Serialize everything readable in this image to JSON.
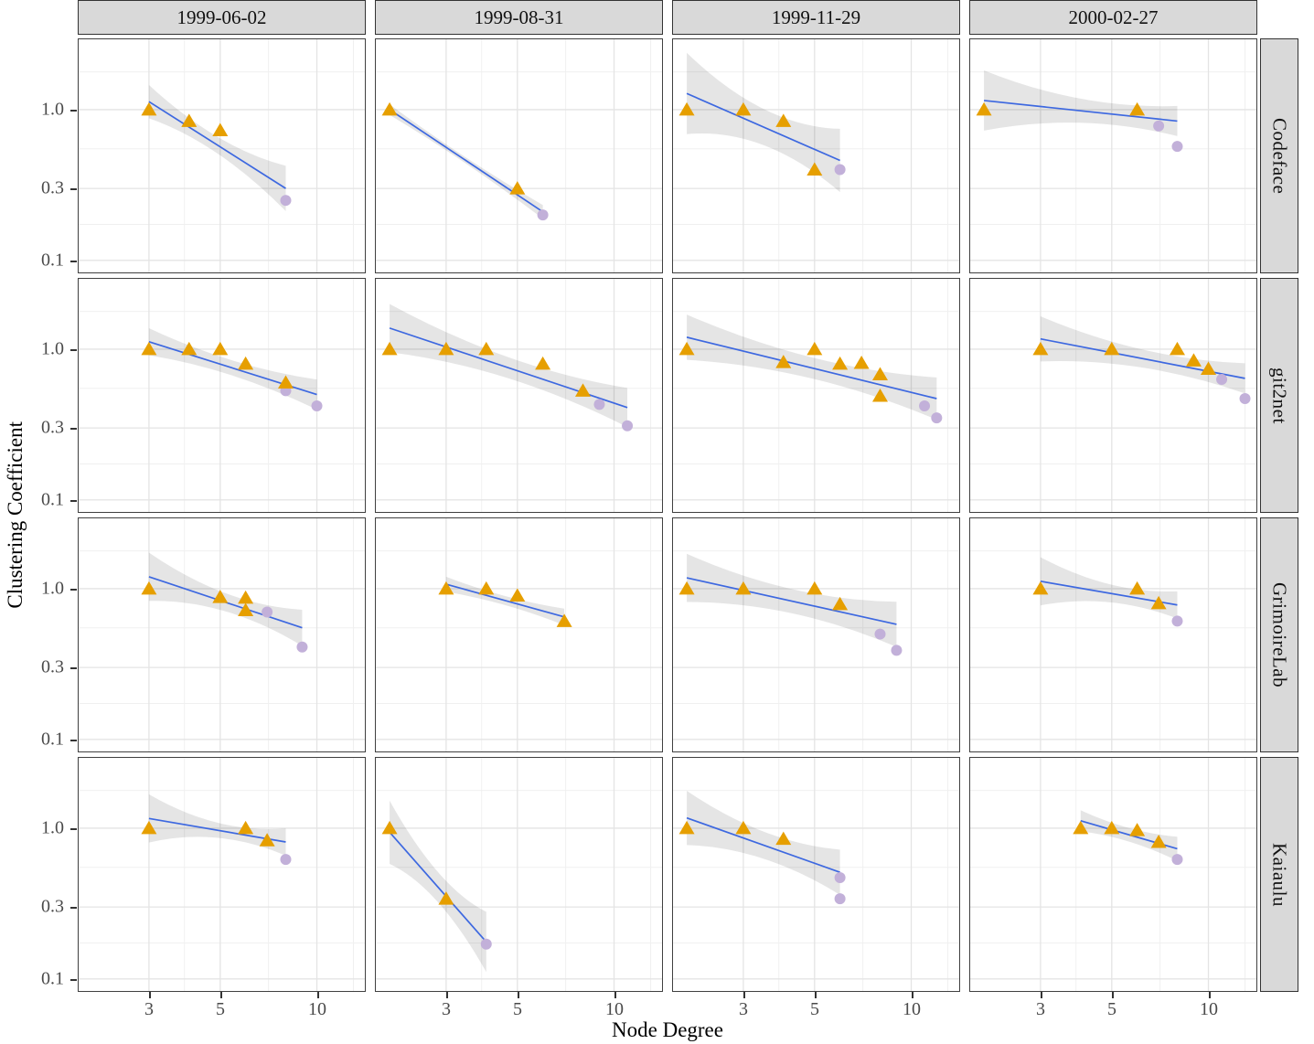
{
  "figure": {
    "x_axis_title": "Node Degree",
    "y_axis_title": "Clustering Coefficient"
  },
  "chart_data": {
    "type": "scatter",
    "scales": "log-log",
    "title": "",
    "xlabel": "Node Degree",
    "ylabel": "Clustering Coefficient",
    "facet_columns": [
      "1999-06-02",
      "1999-08-31",
      "1999-11-29",
      "2000-02-27"
    ],
    "facet_rows": [
      "Codeface",
      "git2net",
      "GrimoireLab",
      "Kaiaulu"
    ],
    "x_ticks": [
      3,
      5,
      10
    ],
    "x_tick_labels": [
      "3",
      "5",
      "10"
    ],
    "y_ticks": [
      1.0,
      0.3,
      0.1
    ],
    "y_tick_labels": [
      "1.0",
      "0.3",
      "0.1"
    ],
    "x_minor_gridlines": [
      3.87,
      7.07,
      13.0
    ],
    "y_minor_gridlines": [
      1.78,
      0.55,
      0.173
    ],
    "xlim": [
      1.8,
      14.2
    ],
    "ylim": [
      0.082,
      2.97
    ],
    "grid": true,
    "legend": "none",
    "colors": {
      "triangle": "#E69F00",
      "circle": "#C2B0D9",
      "trend_line": "#3D68E0",
      "band": "rgba(0,0,0,0.10)",
      "grid_major": "#E4E4E4",
      "grid_minor": "#F0F0F0",
      "strip_bg": "#D9D9D9"
    },
    "panels": [
      {
        "row": "Codeface",
        "col": "1999-06-02",
        "triangles": [
          [
            3,
            1.0
          ],
          [
            4,
            0.84
          ],
          [
            5,
            0.73
          ]
        ],
        "circles": [
          [
            8,
            0.25
          ]
        ],
        "trend": {
          "x": [
            3,
            8
          ],
          "y": [
            1.13,
            0.3
          ]
        },
        "band": [
          0.11,
          0.055,
          0.15
        ]
      },
      {
        "row": "Codeface",
        "col": "1999-08-31",
        "triangles": [
          [
            2,
            1.0
          ],
          [
            5,
            0.3
          ]
        ],
        "circles": [
          [
            6,
            0.2
          ]
        ],
        "trend": {
          "x": [
            2,
            6
          ],
          "y": [
            1.0,
            0.21
          ]
        },
        "band": [
          0.035,
          0.02,
          0.045
        ]
      },
      {
        "row": "Codeface",
        "col": "1999-11-29",
        "triangles": [
          [
            2,
            1.0
          ],
          [
            3,
            1.0
          ],
          [
            4,
            0.84
          ],
          [
            5,
            0.4
          ]
        ],
        "circles": [
          [
            6,
            0.4
          ]
        ],
        "trend": {
          "x": [
            2,
            6
          ],
          "y": [
            1.28,
            0.46
          ]
        },
        "band": [
          0.27,
          0.12,
          0.21
        ]
      },
      {
        "row": "Codeface",
        "col": "2000-02-27",
        "triangles": [
          [
            2,
            1.0
          ],
          [
            6,
            1.0
          ]
        ],
        "circles": [
          [
            7,
            0.78
          ],
          [
            8,
            0.57
          ]
        ],
        "trend": {
          "x": [
            2,
            8
          ],
          "y": [
            1.15,
            0.84
          ]
        },
        "band": [
          0.2,
          0.08,
          0.1
        ]
      },
      {
        "row": "git2net",
        "col": "1999-06-02",
        "triangles": [
          [
            3,
            1.0
          ],
          [
            4,
            1.0
          ],
          [
            5,
            1.0
          ],
          [
            6,
            0.8
          ],
          [
            8,
            0.6
          ]
        ],
        "circles": [
          [
            8,
            0.53
          ],
          [
            10,
            0.42
          ]
        ],
        "trend": {
          "x": [
            3,
            10
          ],
          "y": [
            1.12,
            0.5
          ]
        },
        "band": [
          0.09,
          0.05,
          0.1
        ]
      },
      {
        "row": "git2net",
        "col": "1999-08-31",
        "triangles": [
          [
            2,
            1.0
          ],
          [
            3,
            1.0
          ],
          [
            4,
            1.0
          ],
          [
            6,
            0.8
          ],
          [
            8,
            0.53
          ]
        ],
        "circles": [
          [
            9,
            0.43
          ],
          [
            11,
            0.31
          ]
        ],
        "trend": {
          "x": [
            2,
            11
          ],
          "y": [
            1.38,
            0.41
          ]
        },
        "band": [
          0.16,
          0.07,
          0.13
        ]
      },
      {
        "row": "git2net",
        "col": "1999-11-29",
        "triangles": [
          [
            2,
            1.0
          ],
          [
            4,
            0.82
          ],
          [
            5,
            1.0
          ],
          [
            6,
            0.8
          ],
          [
            7,
            0.81
          ],
          [
            8,
            0.68
          ],
          [
            8,
            0.49
          ]
        ],
        "circles": [
          [
            11,
            0.42
          ],
          [
            12,
            0.35
          ]
        ],
        "trend": {
          "x": [
            2,
            12
          ],
          "y": [
            1.2,
            0.47
          ]
        },
        "band": [
          0.15,
          0.07,
          0.14
        ]
      },
      {
        "row": "git2net",
        "col": "2000-02-27",
        "triangles": [
          [
            3,
            1.0
          ],
          [
            5,
            1.0
          ],
          [
            8,
            1.0
          ],
          [
            9,
            0.84
          ],
          [
            10,
            0.74
          ]
        ],
        "circles": [
          [
            11,
            0.63
          ],
          [
            13,
            0.47
          ]
        ],
        "trend": {
          "x": [
            3,
            13
          ],
          "y": [
            1.17,
            0.64
          ]
        },
        "band": [
          0.15,
          0.06,
          0.1
        ]
      },
      {
        "row": "GrimoireLab",
        "col": "1999-06-02",
        "triangles": [
          [
            3,
            1.0
          ],
          [
            5,
            0.88
          ],
          [
            6,
            0.87
          ],
          [
            6,
            0.72
          ]
        ],
        "circles": [
          [
            7,
            0.7
          ],
          [
            9,
            0.41
          ]
        ],
        "trend": {
          "x": [
            3,
            9
          ],
          "y": [
            1.2,
            0.55
          ]
        },
        "band": [
          0.16,
          0.06,
          0.12
        ]
      },
      {
        "row": "GrimoireLab",
        "col": "1999-08-31",
        "triangles": [
          [
            3,
            1.0
          ],
          [
            4,
            1.0
          ],
          [
            5,
            0.9
          ],
          [
            7,
            0.61
          ]
        ],
        "circles": [],
        "trend": {
          "x": [
            3,
            7
          ],
          "y": [
            1.07,
            0.65
          ]
        },
        "band": [
          0.05,
          0.03,
          0.055
        ]
      },
      {
        "row": "GrimoireLab",
        "col": "1999-11-29",
        "triangles": [
          [
            2,
            1.0
          ],
          [
            3,
            1.0
          ],
          [
            5,
            1.0
          ],
          [
            6,
            0.79
          ]
        ],
        "circles": [
          [
            8,
            0.5
          ],
          [
            9,
            0.39
          ]
        ],
        "trend": {
          "x": [
            2,
            9
          ],
          "y": [
            1.18,
            0.58
          ]
        },
        "band": [
          0.16,
          0.08,
          0.15
        ]
      },
      {
        "row": "GrimoireLab",
        "col": "2000-02-27",
        "triangles": [
          [
            3,
            1.0
          ],
          [
            6,
            1.0
          ],
          [
            7,
            0.8
          ]
        ],
        "circles": [
          [
            8,
            0.61
          ]
        ],
        "trend": {
          "x": [
            3,
            8
          ],
          "y": [
            1.12,
            0.78
          ]
        },
        "band": [
          0.16,
          0.06,
          0.09
        ]
      },
      {
        "row": "Kaiaulu",
        "col": "1999-06-02",
        "triangles": [
          [
            3,
            1.0
          ],
          [
            6,
            1.0
          ],
          [
            7,
            0.83
          ]
        ],
        "circles": [
          [
            8,
            0.62
          ]
        ],
        "trend": {
          "x": [
            3,
            8
          ],
          "y": [
            1.16,
            0.81
          ]
        },
        "band": [
          0.16,
          0.05,
          0.09
        ]
      },
      {
        "row": "Kaiaulu",
        "col": "1999-08-31",
        "triangles": [
          [
            2,
            1.0
          ],
          [
            3,
            0.34
          ]
        ],
        "circles": [
          [
            4,
            0.17
          ]
        ],
        "trend": {
          "x": [
            2,
            4
          ],
          "y": [
            0.94,
            0.176
          ]
        },
        "band": [
          0.21,
          0.1,
          0.2
        ]
      },
      {
        "row": "Kaiaulu",
        "col": "1999-11-29",
        "triangles": [
          [
            2,
            1.0
          ],
          [
            3,
            1.0
          ],
          [
            4,
            0.85
          ]
        ],
        "circles": [
          [
            6,
            0.47
          ],
          [
            6,
            0.34
          ]
        ],
        "trend": {
          "x": [
            2,
            6
          ],
          "y": [
            1.17,
            0.51
          ]
        },
        "band": [
          0.18,
          0.09,
          0.15
        ]
      },
      {
        "row": "Kaiaulu",
        "col": "2000-02-27",
        "triangles": [
          [
            4,
            1.0
          ],
          [
            5,
            1.0
          ],
          [
            6,
            0.97
          ],
          [
            7,
            0.81
          ]
        ],
        "circles": [
          [
            8,
            0.62
          ]
        ],
        "trend": {
          "x": [
            4,
            8
          ],
          "y": [
            1.12,
            0.73
          ]
        },
        "band": [
          0.07,
          0.045,
          0.08
        ]
      }
    ]
  }
}
